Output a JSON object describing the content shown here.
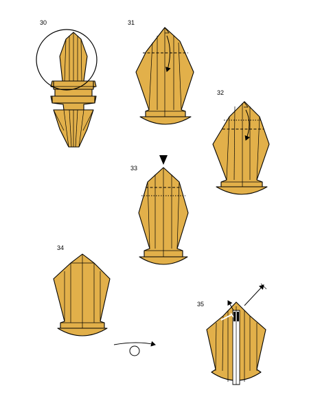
{
  "steps": [
    {
      "label": "30"
    },
    {
      "label": "31"
    },
    {
      "label": "32"
    },
    {
      "label": "33"
    },
    {
      "label": "34"
    },
    {
      "label": "35"
    }
  ],
  "colors": {
    "paper": "#E2B04A",
    "line": "#000000",
    "background": "#ffffff"
  },
  "icons": {
    "turn_over": "turn-over-icon",
    "push": "push-arrow-icon",
    "fold_arrow": "valley-fold-arrow-icon"
  }
}
